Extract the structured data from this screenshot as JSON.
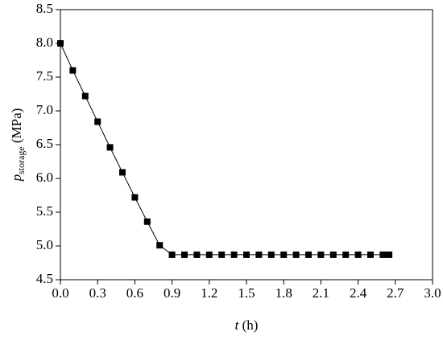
{
  "chart_data": {
    "type": "line",
    "x_label": {
      "symbol": "t",
      "unit": "(h)"
    },
    "y_label": {
      "symbol": "p",
      "subscript": "storage",
      "unit": "(MPa)"
    },
    "x": [
      0,
      0.1,
      0.2,
      0.3,
      0.4,
      0.5,
      0.6,
      0.7,
      0.8,
      0.9,
      1.0,
      1.1,
      1.2,
      1.3,
      1.4,
      1.5,
      1.6,
      1.7,
      1.8,
      1.9,
      2.0,
      2.1,
      2.2,
      2.3,
      2.4,
      2.5,
      2.6,
      2.65
    ],
    "series": [
      {
        "color": "#000000",
        "values": [
          8.0,
          7.6,
          7.22,
          6.84,
          6.46,
          6.09,
          5.72,
          5.36,
          5.01,
          4.87,
          4.87,
          4.87,
          4.87,
          4.87,
          4.87,
          4.87,
          4.87,
          4.87,
          4.87,
          4.87,
          4.87,
          4.87,
          4.87,
          4.87,
          4.87,
          4.87,
          4.87,
          4.87
        ]
      }
    ],
    "xlim": [
      0,
      3.0
    ],
    "xticks": [
      {
        "value": 0,
        "label": "0.0"
      },
      0.3,
      0.6,
      0.9,
      1.2,
      1.5,
      1.8,
      2.1,
      2.4,
      2.7,
      {
        "value": 3,
        "label": "3.0"
      }
    ],
    "ylim": [
      4.5,
      8.5
    ],
    "yticks": [
      4.5,
      {
        "value": 5,
        "label": "5.0"
      },
      5.5,
      {
        "value": 6,
        "label": "6.0"
      },
      6.5,
      {
        "value": 7,
        "label": "7.0"
      },
      7.5,
      {
        "value": 8,
        "label": "8.0"
      },
      8.5
    ],
    "grid": false
  }
}
